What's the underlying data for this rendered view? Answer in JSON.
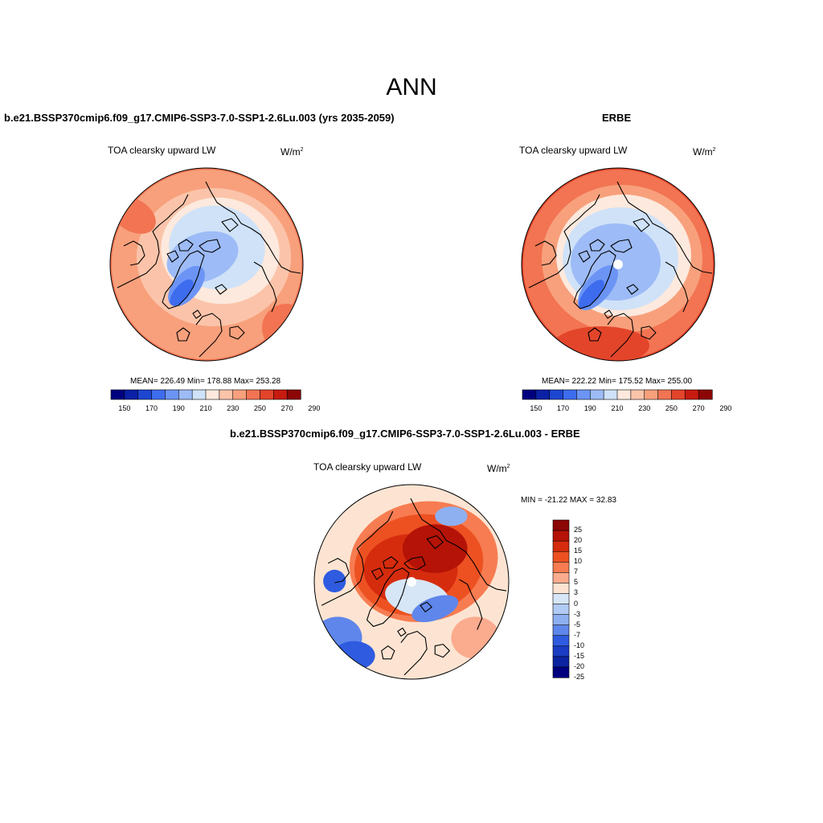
{
  "page": {
    "title": "ANN"
  },
  "colors": {
    "abs_scale": [
      "#00007f",
      "#0b20a6",
      "#1d46d0",
      "#3e6cee",
      "#6b94f5",
      "#9dbbf6",
      "#cfe2f8",
      "#fde9dd",
      "#fbc4aa",
      "#f8a07c",
      "#f27452",
      "#e3452a",
      "#c81b10",
      "#8c0606"
    ],
    "diff_scale": [
      "#8c0606",
      "#b51307",
      "#d62c0e",
      "#ed5122",
      "#f77c51",
      "#fbab8e",
      "#fde4d2",
      "#d6e6f7",
      "#b1cbf4",
      "#8eb0f1",
      "#5f86ea",
      "#2f5be0",
      "#1a3cc3",
      "#0b23a0",
      "#00007f"
    ]
  },
  "chart_data": [
    {
      "type": "heatmap",
      "title": "b.e21.BSSP370cmip6.f09_g17.CMIP6-SSP3-7.0-SSP1-2.6Lu.003 (yrs 2035-2059)",
      "subtitle": "TOA clearsky upward LW",
      "units": "W/m",
      "units_sup": "2",
      "stats": "MEAN= 226.49  Min= 178.88  Max= 253.28",
      "colorbar": {
        "levels": [
          150,
          160,
          170,
          180,
          190,
          200,
          210,
          220,
          230,
          240,
          250,
          260,
          270,
          280,
          290
        ],
        "labels": [
          "150",
          "170",
          "190",
          "210",
          "230",
          "250",
          "270",
          "290"
        ]
      },
      "projection": "polar-stereographic-north",
      "has_pole_hole": false
    },
    {
      "type": "heatmap",
      "title": "ERBE",
      "subtitle": "TOA clearsky upward LW",
      "units": "W/m",
      "units_sup": "2",
      "stats": "MEAN= 222.22  Min= 175.52  Max= 255.00",
      "colorbar": {
        "levels": [
          150,
          160,
          170,
          180,
          190,
          200,
          210,
          220,
          230,
          240,
          250,
          260,
          270,
          280,
          290
        ],
        "labels": [
          "150",
          "170",
          "190",
          "210",
          "230",
          "250",
          "270",
          "290"
        ]
      },
      "projection": "polar-stereographic-north",
      "has_pole_hole": true
    },
    {
      "type": "heatmap",
      "title": "b.e21.BSSP370cmip6.f09_g17.CMIP6-SSP3-7.0-SSP1-2.6Lu.003 - ERBE",
      "subtitle": "TOA clearsky upward LW",
      "units": "W/m",
      "units_sup": "2",
      "stats": "MIN = -21.22 MAX =  32.83",
      "colorbar": {
        "labels": [
          "25",
          "20",
          "15",
          "10",
          "7",
          "5",
          "3",
          "0",
          "-3",
          "-5",
          "-7",
          "-10",
          "-15",
          "-20",
          "-25"
        ]
      },
      "projection": "polar-stereographic-north",
      "has_pole_hole": true
    }
  ]
}
